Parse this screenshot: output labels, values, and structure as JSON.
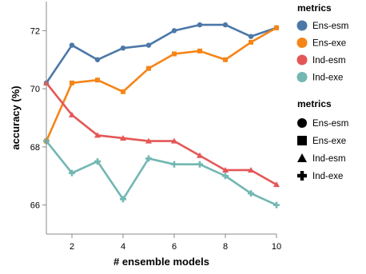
{
  "chart_data": {
    "type": "line",
    "xlabel": "# ensemble models",
    "ylabel": "accuracy (%)",
    "xlim": [
      1,
      10
    ],
    "ylim": [
      65,
      73
    ],
    "x_ticks": [
      "2",
      "4",
      "6",
      "8",
      "10"
    ],
    "y_ticks": [
      "66",
      "68",
      "70",
      "72"
    ],
    "grid": false,
    "legend_placement": "right",
    "x": [
      1,
      2,
      3,
      4,
      5,
      6,
      7,
      8,
      9,
      10
    ],
    "series": [
      {
        "name": "Ens-esm",
        "color": "#4c78a8",
        "shape": "circle",
        "values": [
          70.2,
          71.5,
          71.0,
          71.4,
          71.5,
          72.0,
          72.2,
          72.2,
          71.8,
          72.1
        ]
      },
      {
        "name": "Ens-exe",
        "color": "#f58518",
        "shape": "square",
        "values": [
          68.2,
          70.2,
          70.3,
          69.9,
          70.7,
          71.2,
          71.3,
          71.0,
          71.6,
          72.1
        ]
      },
      {
        "name": "Ind-esm",
        "color": "#e45756",
        "shape": "triangle-up",
        "values": [
          70.2,
          69.1,
          68.4,
          68.3,
          68.2,
          68.2,
          67.7,
          67.2,
          67.2,
          66.7
        ]
      },
      {
        "name": "Ind-exe",
        "color": "#72b7b2",
        "shape": "cross",
        "values": [
          68.2,
          67.1,
          67.5,
          66.2,
          67.6,
          67.4,
          67.4,
          67.0,
          66.4,
          66.0
        ]
      }
    ],
    "legends": [
      {
        "title": "metrics",
        "kind": "color",
        "items": [
          "Ens-esm",
          "Ens-exe",
          "Ind-esm",
          "Ind-exe"
        ]
      },
      {
        "title": "metrics",
        "kind": "shape",
        "items": [
          "Ens-esm",
          "Ens-exe",
          "Ind-esm",
          "Ind-exe"
        ]
      }
    ]
  }
}
